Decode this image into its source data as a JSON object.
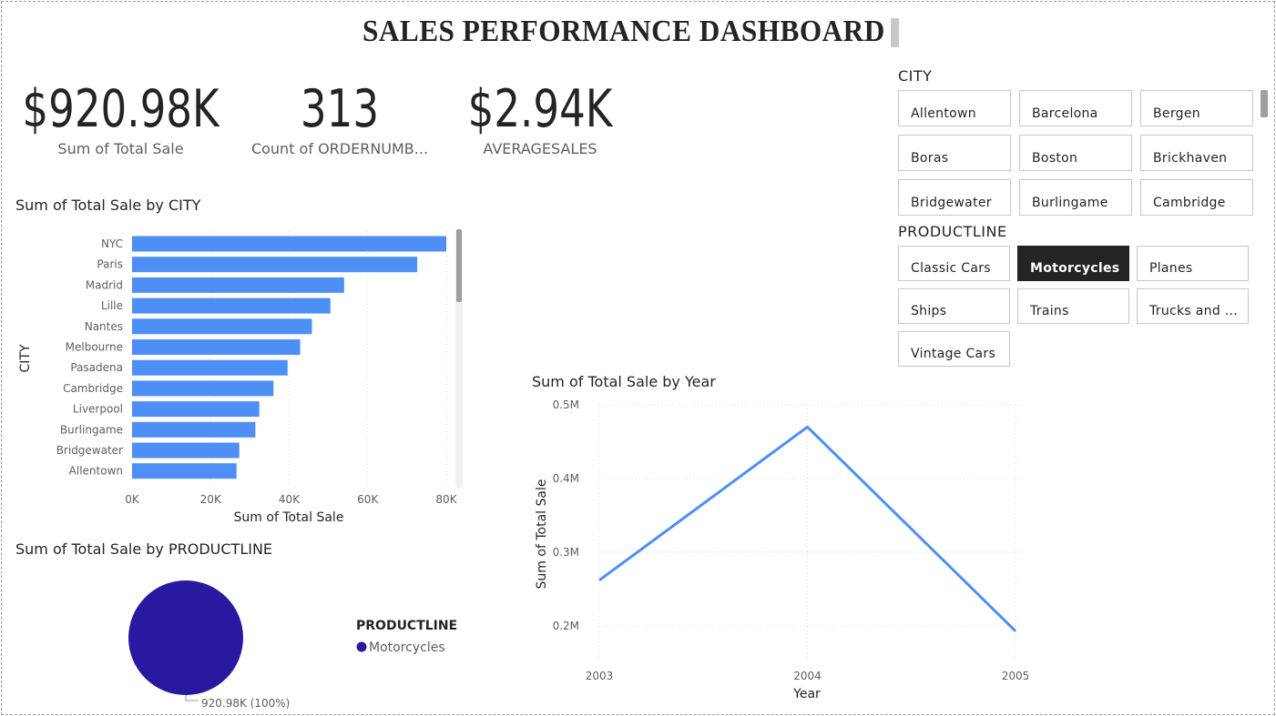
{
  "title": "SALES PERFORMANCE DASHBOARD",
  "kpis": [
    {
      "value": "$920.98K",
      "label": "Sum of Total Sale"
    },
    {
      "value": "313",
      "label": "Count of ORDERNUMB..."
    },
    {
      "value": "$2.94K",
      "label": "AVERAGESALES"
    }
  ],
  "city_slicer": {
    "header": "CITY",
    "items": [
      "Allentown",
      "Barcelona",
      "Bergen",
      "Boras",
      "Boston",
      "Brickhaven",
      "Bridgewater",
      "Burlingame",
      "Cambridge"
    ]
  },
  "productline_slicer": {
    "header": "PRODUCTLINE",
    "items": [
      "Classic Cars",
      "Motorcycles",
      "Planes",
      "Ships",
      "Trains",
      "Trucks and ...",
      "Vintage Cars"
    ],
    "selected": "Motorcycles"
  },
  "colors": {
    "bar": "#4e8ff5",
    "line": "#4e8ff5",
    "pie": "#2819a0",
    "selected_chip": "#252423"
  },
  "chart_data": [
    {
      "type": "bar",
      "orientation": "horizontal",
      "title": "Sum of Total Sale by CITY",
      "xlabel": "Sum of Total Sale",
      "ylabel": "CITY",
      "categories": [
        "NYC",
        "Paris",
        "Madrid",
        "Lille",
        "Nantes",
        "Melbourne",
        "Pasadena",
        "Cambridge",
        "Liverpool",
        "Burlingame",
        "Bridgewater",
        "Allentown"
      ],
      "values": [
        80000,
        72600,
        54000,
        50500,
        45800,
        42800,
        39600,
        36000,
        32400,
        31400,
        27300,
        26600
      ],
      "xticks": [
        "0K",
        "20K",
        "40K",
        "60K",
        "80K"
      ],
      "xlim": [
        0,
        80000
      ],
      "grid": true
    },
    {
      "type": "pie",
      "title": "Sum of Total Sale by PRODUCTLINE",
      "legend_title": "PRODUCTLINE",
      "slices": [
        {
          "name": "Motorcycles",
          "value": 920980,
          "label": "920.98K (100%)"
        }
      ]
    },
    {
      "type": "line",
      "title": "Sum of Total Sale by Year",
      "xlabel": "Year",
      "ylabel": "Sum of Total Sale",
      "x": [
        "2003",
        "2004",
        "2005"
      ],
      "values": [
        262000,
        470000,
        193000
      ],
      "yticks": [
        "0.2M",
        "0.3M",
        "0.4M",
        "0.5M"
      ],
      "ylim": [
        200000,
        500000
      ],
      "grid": true
    }
  ]
}
